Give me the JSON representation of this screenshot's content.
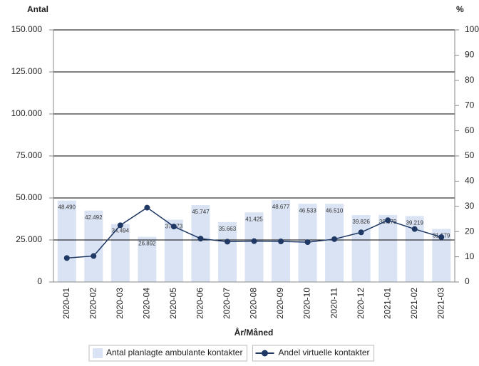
{
  "chart_data": {
    "type": "bar",
    "y_label": "Antal",
    "y2_label": "%",
    "x_label": "År/Måned",
    "categories": [
      "2020-01",
      "2020-02",
      "2020-03",
      "2020-04",
      "2020-05",
      "2020-06",
      "2020-07",
      "2020-08",
      "2020-09",
      "2020-10",
      "2020-11",
      "2020-12",
      "2021-01",
      "2021-02",
      "2021-03"
    ],
    "series": [
      {
        "name": "Antal planlagte ambulante kontakter",
        "type": "bar",
        "color": "#dae3f3",
        "values": [
          48490,
          42492,
          34494,
          26892,
          37073,
          45747,
          35663,
          41425,
          48677,
          46533,
          46510,
          39826,
          39879,
          39219,
          31579
        ],
        "value_labels": [
          "48.490",
          "42.492",
          "34.494",
          "26.892",
          "37.073",
          "45.747",
          "35.663",
          "41.425",
          "48.677",
          "46.533",
          "46.510",
          "39.826",
          "39.879",
          "39.219",
          "31.579"
        ]
      },
      {
        "name": "Andel virtuelle kontakter",
        "type": "line",
        "axis": "y2",
        "color": "#1f3864",
        "values": [
          9.5,
          10.3,
          22.5,
          29.5,
          22,
          17.2,
          16,
          16.2,
          16.1,
          15.8,
          17,
          19.7,
          24.5,
          21,
          17.8
        ]
      }
    ],
    "ylim": [
      0,
      150000
    ],
    "yticks": [
      {
        "value": 0,
        "label": "0"
      },
      {
        "value": 25000,
        "label": "25.000"
      },
      {
        "value": 50000,
        "label": "50.000"
      },
      {
        "value": 75000,
        "label": "75.000"
      },
      {
        "value": 100000,
        "label": "100.000"
      },
      {
        "value": 125000,
        "label": "125.000"
      },
      {
        "value": 150000,
        "label": "150.000"
      }
    ],
    "y2lim": [
      0,
      100
    ],
    "y2ticks": [
      0,
      10,
      20,
      30,
      40,
      50,
      60,
      70,
      80,
      90,
      100
    ],
    "grid": true
  }
}
